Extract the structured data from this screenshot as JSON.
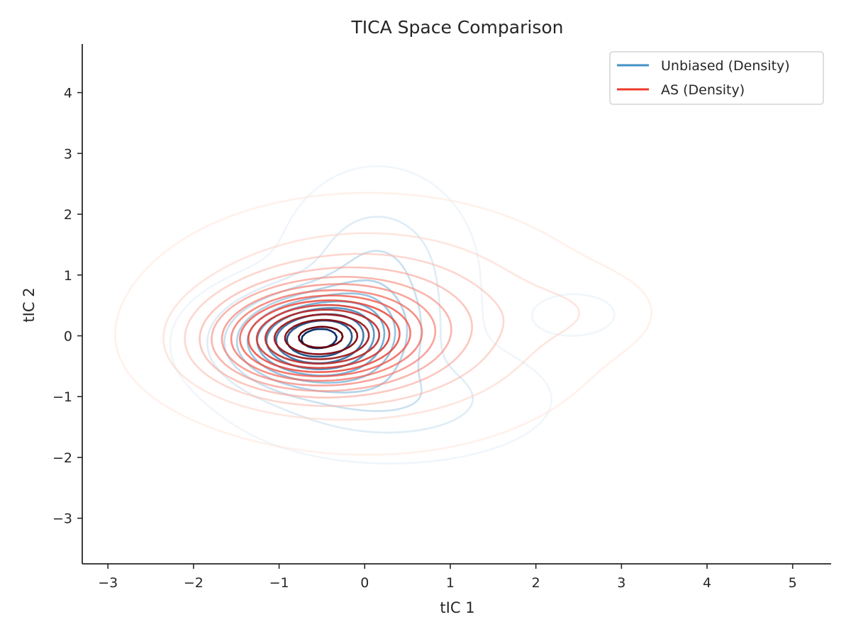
{
  "chart_data": {
    "type": "contour",
    "title": "TICA Space Comparison",
    "xlabel": "tIC 1",
    "ylabel": "tIC 2",
    "xlim": [
      -3.3,
      5.45
    ],
    "ylim": [
      -3.75,
      4.8
    ],
    "xticks": [
      -3,
      -2,
      -1,
      0,
      1,
      2,
      3,
      4,
      5
    ],
    "yticks": [
      -3,
      -2,
      -1,
      0,
      1,
      2,
      3,
      4
    ],
    "xtick_labels": [
      "−3",
      "−2",
      "−1",
      "0",
      "1",
      "2",
      "3",
      "4",
      "5"
    ],
    "ytick_labels": [
      "−3",
      "−2",
      "−1",
      "0",
      "1",
      "2",
      "3",
      "4"
    ],
    "grid": false,
    "legend_position": "upper-right",
    "series": [
      {
        "name": "Unbiased (Density)",
        "color": "#4292c6",
        "dark_color": "#08306b",
        "light_color": "#deebf7",
        "levels": 10,
        "components": [
          {
            "weight": 1.0,
            "mean": [
              -0.6,
              -0.05
            ],
            "sd": [
              0.62,
              0.48
            ],
            "rho": 0.05
          },
          {
            "weight": 0.28,
            "mean": [
              0.15,
              0.95
            ],
            "sd": [
              0.55,
              0.85
            ],
            "rho": 0.0
          },
          {
            "weight": 0.24,
            "mean": [
              0.3,
              -1.05
            ],
            "sd": [
              0.9,
              0.5
            ],
            "rho": 0.0
          },
          {
            "weight": 0.05,
            "mean": [
              2.45,
              0.35
            ],
            "sd": [
              0.42,
              0.3
            ],
            "rho": 0.0
          }
        ]
      },
      {
        "name": "AS (Density)",
        "color": "#ef3b2c",
        "dark_color": "#67000d",
        "light_color": "#fee0d2",
        "levels": 14,
        "components": [
          {
            "weight": 1.0,
            "mean": [
              -0.6,
              -0.05
            ],
            "sd": [
              0.75,
              0.5
            ],
            "rho": 0.05
          },
          {
            "weight": 0.45,
            "mean": [
              0.05,
              0.2
            ],
            "sd": [
              1.25,
              0.95
            ],
            "rho": 0.0
          },
          {
            "weight": 0.07,
            "mean": [
              2.5,
              0.4
            ],
            "sd": [
              0.55,
              0.4
            ],
            "rho": 0.0
          }
        ]
      }
    ]
  }
}
